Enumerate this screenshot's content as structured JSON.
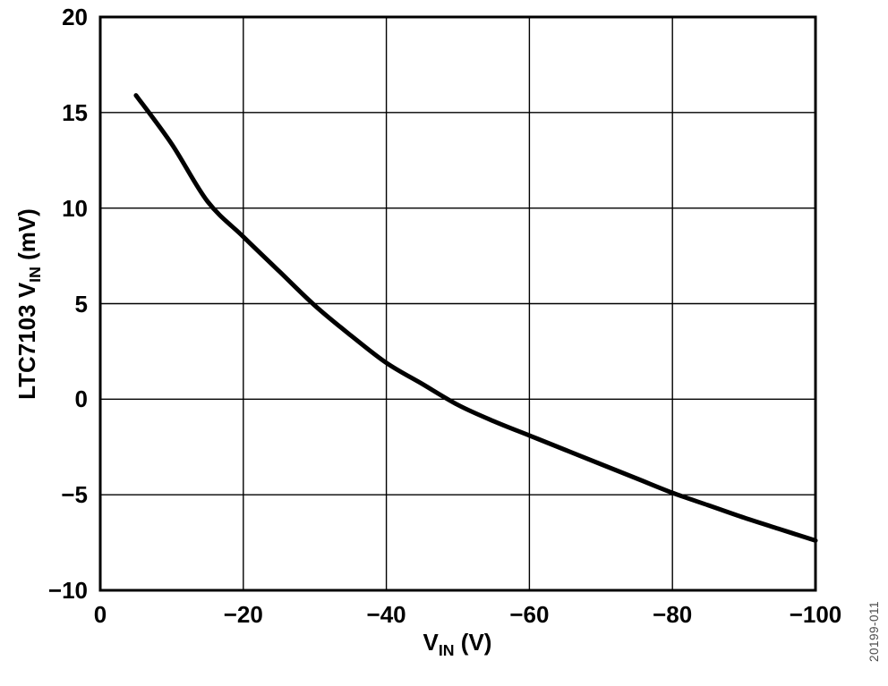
{
  "watermark": "20199-011",
  "colors": {
    "line": "#000000",
    "grid": "#000000",
    "axis_border": "#000000",
    "text": "#000000",
    "watermark": "#4d4d4d",
    "background": "#ffffff"
  },
  "chart_data": {
    "type": "line",
    "title": "",
    "xlabel": {
      "pre": "V",
      "sub": "IN",
      "post": " (V)"
    },
    "ylabel": {
      "pre": "LTC7103 V",
      "sub": "IN",
      "post": " (mV)"
    },
    "xlim": [
      0,
      -100
    ],
    "ylim": [
      -10,
      20
    ],
    "grid": true,
    "legend": false,
    "x_ticks": {
      "values": [
        0,
        -20,
        -40,
        -60,
        -80,
        -100
      ],
      "labels": [
        "0",
        "−20",
        "−40",
        "−60",
        "−80",
        "−100"
      ]
    },
    "y_ticks": {
      "values": [
        20,
        15,
        10,
        5,
        0,
        -5,
        -10
      ],
      "labels": [
        "20",
        "15",
        "10",
        "5",
        "0",
        "−5",
        "−10"
      ]
    },
    "series": [
      {
        "x": [
          -5,
          -10,
          -15,
          -20,
          -25,
          -30,
          -35,
          -40,
          -45,
          -50,
          -55,
          -60,
          -65,
          -70,
          -75,
          -80,
          -85,
          -90,
          -95,
          -100
        ],
        "y": [
          15.9,
          13.35,
          10.35,
          8.5,
          6.7,
          4.9,
          3.35,
          1.9,
          0.8,
          -0.3,
          -1.15,
          -1.9,
          -2.65,
          -3.4,
          -4.15,
          -4.9,
          -5.55,
          -6.2,
          -6.8,
          -7.4
        ]
      }
    ]
  }
}
